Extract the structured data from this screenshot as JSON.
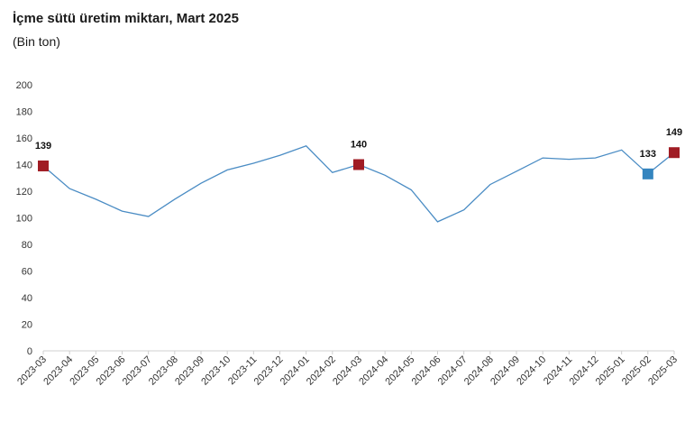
{
  "chart_data": {
    "type": "line",
    "title": "İçme sütü üretim miktarı, Mart 2025",
    "subtitle": "(Bin ton)",
    "xlabel": "",
    "ylabel": "",
    "ylim": [
      0,
      200
    ],
    "yticks": [
      0,
      20,
      40,
      60,
      80,
      100,
      120,
      140,
      160,
      180,
      200
    ],
    "grid": false,
    "legend": "none",
    "x": [
      "2023-03",
      "2023-04",
      "2023-05",
      "2023-06",
      "2023-07",
      "2023-08",
      "2023-09",
      "2023-10",
      "2023-11",
      "2023-12",
      "2024-01",
      "2024-02",
      "2024-03",
      "2024-04",
      "2024-05",
      "2024-06",
      "2024-07",
      "2024-08",
      "2024-09",
      "2024-10",
      "2024-11",
      "2024-12",
      "2025-01",
      "2025-02",
      "2025-03"
    ],
    "series": [
      {
        "values": [
          139,
          122,
          114,
          105,
          101,
          114,
          126,
          136,
          141,
          147,
          154,
          134,
          140,
          132,
          121,
          97,
          106,
          125,
          135,
          145,
          144,
          145,
          151,
          133,
          149
        ],
        "color": "#4a8cc4"
      }
    ],
    "markers": [
      {
        "index": 0,
        "label": "139",
        "color": "#a01c24"
      },
      {
        "index": 12,
        "label": "140",
        "color": "#a01c24"
      },
      {
        "index": 23,
        "label": "133",
        "color": "#3585bf"
      },
      {
        "index": 24,
        "label": "149",
        "color": "#a01c24"
      }
    ],
    "axis_color": "#d0d0d0"
  }
}
